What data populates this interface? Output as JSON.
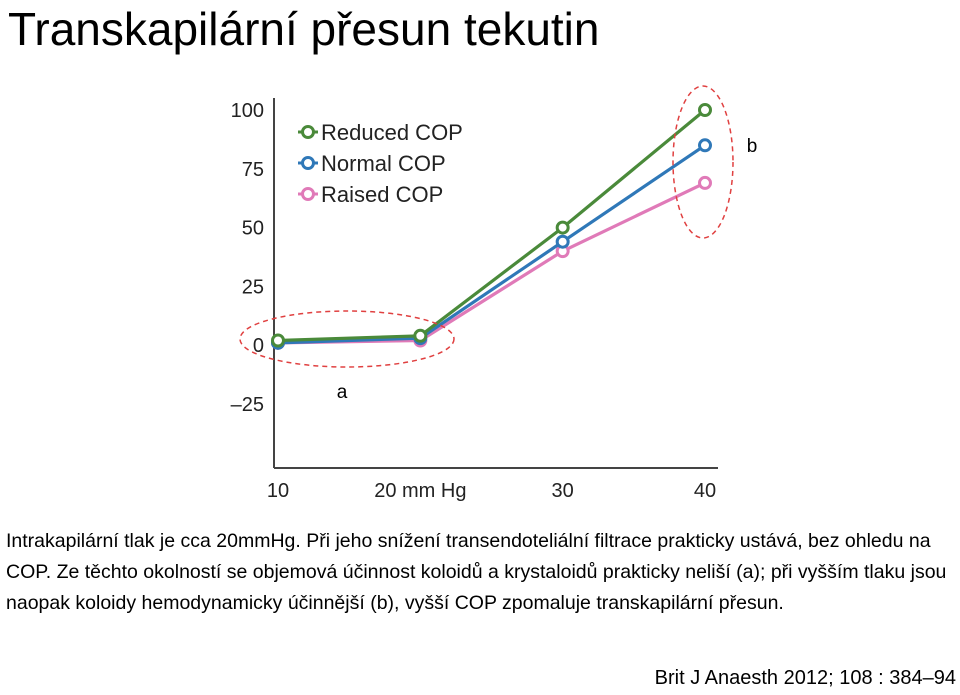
{
  "slide": {
    "title": "Transkapilární přesun tekutin",
    "caption": [
      "Intrakapilární tlak je cca 20mmHg. Při jeho snížení transendoteliální filtrace prakticky ustává, bez ohledu na COP. Ze těchto okolností se objemová účinnost koloidů a krystaloidů prakticky neliší (a); při vyšším tlaku jsou naopak koloidy hemodynamicky účinnější (b), vyšší COP zpomaluje transkapilární přesun."
    ],
    "citation": "Brit J Anaesth 2012; 108 : 384–94"
  },
  "chart_data": {
    "type": "line",
    "title": "",
    "xlabel": "",
    "ylabel": "",
    "x": [
      10,
      20,
      30,
      40
    ],
    "x_tick_labels": [
      "10",
      "20 mm Hg",
      "30",
      "40"
    ],
    "y_ticks": [
      100,
      75,
      50,
      25,
      0,
      -25
    ],
    "y_tick_labels": [
      "100",
      "75",
      "50",
      "25",
      "0",
      "–25"
    ],
    "ylim": [
      -25,
      100
    ],
    "grid": false,
    "legend_position": "top-left",
    "series": [
      {
        "name": "Reduced COP",
        "color": "#4a8a3a",
        "values": [
          2,
          4,
          50,
          100
        ]
      },
      {
        "name": "Normal COP",
        "color": "#2f78b8",
        "values": [
          1,
          3,
          44,
          85
        ]
      },
      {
        "name": "Raised COP",
        "color": "#e07ab8",
        "values": [
          1,
          2,
          40,
          69
        ]
      }
    ],
    "annotations": [
      {
        "label": "a",
        "marker_color": "#e04040"
      },
      {
        "label": "b",
        "marker_color": "#e04040"
      }
    ]
  }
}
